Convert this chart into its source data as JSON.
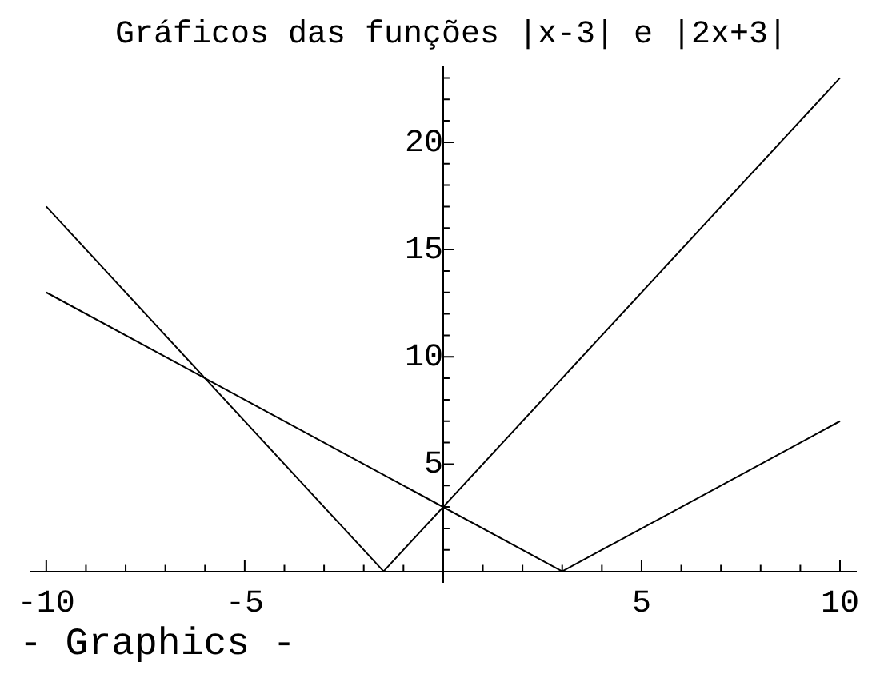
{
  "chart_data": {
    "type": "line",
    "title": "Gráficos das funções |x-3| e |2x+3|",
    "series": [
      {
        "color": "#000000",
        "x": [
          -10,
          3,
          10
        ],
        "values": [
          13,
          0,
          7
        ]
      },
      {
        "color": "#000000",
        "x": [
          -10,
          -1.5,
          10
        ],
        "values": [
          17,
          0,
          23
        ]
      }
    ],
    "xlim": [
      -10.4,
      10.4
    ],
    "ylim": [
      -0.5,
      23.5
    ],
    "xticks": [
      -10,
      {
        "value": -9,
        "label": null
      },
      {
        "value": -8,
        "label": null
      },
      {
        "value": -7,
        "label": null
      },
      {
        "value": -6,
        "label": null
      },
      -5,
      {
        "value": -4,
        "label": null
      },
      {
        "value": -3,
        "label": null
      },
      {
        "value": -2,
        "label": null
      },
      {
        "value": -1,
        "label": null
      },
      {
        "value": 1,
        "label": null
      },
      {
        "value": 2,
        "label": null
      },
      {
        "value": 3,
        "label": null
      },
      {
        "value": 4,
        "label": null
      },
      5,
      {
        "value": 6,
        "label": null
      },
      {
        "value": 7,
        "label": null
      },
      {
        "value": 8,
        "label": null
      },
      {
        "value": 9,
        "label": null
      },
      10
    ],
    "yticks": [
      {
        "value": 1,
        "label": null
      },
      {
        "value": 2,
        "label": null
      },
      {
        "value": 3,
        "label": null
      },
      {
        "value": 4,
        "label": null
      },
      5,
      {
        "value": 6,
        "label": null
      },
      {
        "value": 7,
        "label": null
      },
      {
        "value": 8,
        "label": null
      },
      {
        "value": 9,
        "label": null
      },
      10,
      {
        "value": 11,
        "label": null
      },
      {
        "value": 12,
        "label": null
      },
      {
        "value": 13,
        "label": null
      },
      {
        "value": 14,
        "label": null
      },
      15,
      {
        "value": 16,
        "label": null
      },
      {
        "value": 17,
        "label": null
      },
      {
        "value": 18,
        "label": null
      },
      {
        "value": 19,
        "label": null
      },
      20,
      {
        "value": 21,
        "label": null
      },
      {
        "value": 22,
        "label": null
      },
      {
        "value": 23,
        "label": null
      }
    ],
    "grid": false,
    "legend": false,
    "marker": "none",
    "line_style": "solid",
    "annotations": [
      "- Graphics -"
    ]
  }
}
